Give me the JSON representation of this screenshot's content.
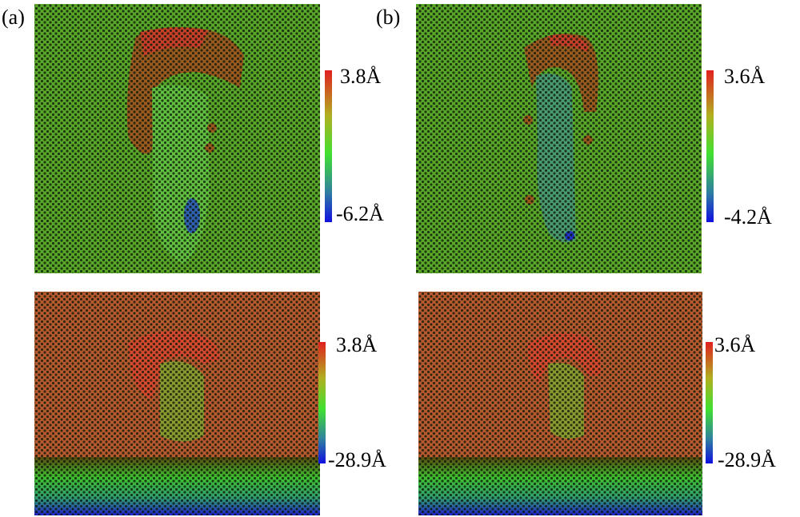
{
  "panels": [
    {
      "label": "(a)",
      "top": {
        "max": "3.8Å",
        "min": "-6.2Å"
      },
      "bottom": {
        "max": "3.8Å",
        "min": "-28.9Å"
      }
    },
    {
      "label": "(b)",
      "top": {
        "max": "3.6Å",
        "min": "-4.2Å"
      },
      "bottom": {
        "max": "3.6Å",
        "min": "-28.9Å"
      }
    }
  ]
}
